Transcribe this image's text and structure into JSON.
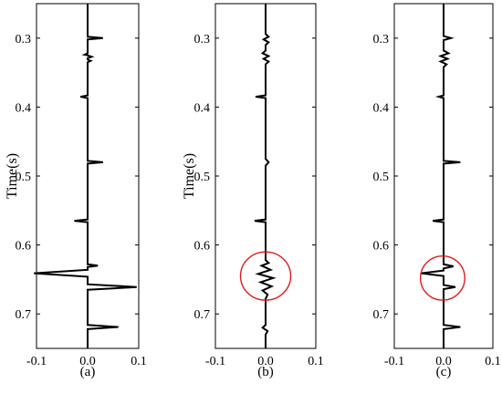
{
  "chart_data": [
    {
      "type": "line",
      "orientation": "vertical-trace",
      "caption": "(a)",
      "ylabel": "Time(s)",
      "xlim": [
        -0.1,
        0.1
      ],
      "ylim": [
        0.75,
        0.25
      ],
      "xticks": [
        "-0.1",
        "0.0",
        "0.1"
      ],
      "yticks": [
        "0.3",
        "0.4",
        "0.5",
        "0.6",
        "0.7"
      ],
      "trace": [
        [
          0.0,
          0.25
        ],
        [
          0.0,
          0.298
        ],
        [
          0.03,
          0.3
        ],
        [
          0.0,
          0.302
        ],
        [
          0.0,
          0.322
        ],
        [
          -0.006,
          0.324
        ],
        [
          0.0,
          0.325
        ],
        [
          0.008,
          0.327
        ],
        [
          0.0,
          0.329
        ],
        [
          0.0,
          0.331
        ],
        [
          0.006,
          0.333
        ],
        [
          0.0,
          0.335
        ],
        [
          0.0,
          0.383
        ],
        [
          -0.014,
          0.385
        ],
        [
          0.0,
          0.387
        ],
        [
          0.0,
          0.478
        ],
        [
          0.03,
          0.48
        ],
        [
          0.0,
          0.482
        ],
        [
          0.0,
          0.563
        ],
        [
          -0.026,
          0.565
        ],
        [
          0.0,
          0.567
        ],
        [
          0.0,
          0.628
        ],
        [
          0.02,
          0.63
        ],
        [
          0.0,
          0.632
        ],
        [
          0.0,
          0.636
        ],
        [
          -0.105,
          0.641
        ],
        [
          0.0,
          0.646
        ],
        [
          0.0,
          0.657
        ],
        [
          0.096,
          0.661
        ],
        [
          0.0,
          0.665
        ],
        [
          0.0,
          0.716
        ],
        [
          0.06,
          0.719
        ],
        [
          0.0,
          0.722
        ],
        [
          0.0,
          0.75
        ]
      ],
      "marker": null
    },
    {
      "type": "line",
      "orientation": "vertical-trace",
      "caption": "(b)",
      "ylabel": "Time(s)",
      "xlim": [
        -0.1,
        0.1
      ],
      "ylim": [
        0.75,
        0.25
      ],
      "xticks": [
        "-0.1",
        "0.0",
        "0.1"
      ],
      "yticks": [
        "0.3",
        "0.4",
        "0.5",
        "0.6",
        "0.7"
      ],
      "trace": [
        [
          0.0,
          0.25
        ],
        [
          0.0,
          0.294
        ],
        [
          0.006,
          0.298
        ],
        [
          -0.004,
          0.302
        ],
        [
          0.006,
          0.306
        ],
        [
          0.0,
          0.31
        ],
        [
          0.0,
          0.318
        ],
        [
          -0.006,
          0.322
        ],
        [
          0.006,
          0.326
        ],
        [
          -0.004,
          0.33
        ],
        [
          0.006,
          0.334
        ],
        [
          0.0,
          0.338
        ],
        [
          0.0,
          0.383
        ],
        [
          -0.02,
          0.385
        ],
        [
          0.0,
          0.387
        ],
        [
          0.0,
          0.475
        ],
        [
          0.006,
          0.48
        ],
        [
          0.0,
          0.485
        ],
        [
          0.0,
          0.563
        ],
        [
          -0.022,
          0.565
        ],
        [
          0.0,
          0.567
        ],
        [
          0.0,
          0.622
        ],
        [
          0.006,
          0.626
        ],
        [
          -0.008,
          0.63
        ],
        [
          0.01,
          0.636
        ],
        [
          -0.015,
          0.642
        ],
        [
          0.015,
          0.648
        ],
        [
          -0.01,
          0.654
        ],
        [
          0.012,
          0.66
        ],
        [
          -0.006,
          0.666
        ],
        [
          0.004,
          0.672
        ],
        [
          0.0,
          0.678
        ],
        [
          0.0,
          0.716
        ],
        [
          -0.006,
          0.72
        ],
        [
          0.004,
          0.725
        ],
        [
          0.0,
          0.73
        ],
        [
          0.0,
          0.75
        ]
      ],
      "marker": {
        "shape": "ellipse",
        "color": "#e0191b",
        "center": [
          0.0,
          0.645
        ],
        "radius": [
          0.05,
          0.035
        ]
      }
    },
    {
      "type": "line",
      "orientation": "vertical-trace",
      "caption": "(c)",
      "ylabel": "",
      "xlim": [
        -0.1,
        0.1
      ],
      "ylim": [
        0.75,
        0.25
      ],
      "xticks": [
        "-0.1",
        "0.0",
        "0.1"
      ],
      "yticks": [
        "0.3",
        "0.4",
        "0.5",
        "0.6",
        "0.7"
      ],
      "trace": [
        [
          0.0,
          0.25
        ],
        [
          0.0,
          0.297
        ],
        [
          0.015,
          0.3
        ],
        [
          0.0,
          0.303
        ],
        [
          0.0,
          0.318
        ],
        [
          0.01,
          0.322
        ],
        [
          -0.006,
          0.326
        ],
        [
          0.008,
          0.33
        ],
        [
          -0.006,
          0.334
        ],
        [
          0.006,
          0.338
        ],
        [
          0.0,
          0.342
        ],
        [
          0.0,
          0.383
        ],
        [
          -0.01,
          0.385
        ],
        [
          0.0,
          0.387
        ],
        [
          0.0,
          0.478
        ],
        [
          0.034,
          0.48
        ],
        [
          0.0,
          0.482
        ],
        [
          0.0,
          0.563
        ],
        [
          -0.022,
          0.565
        ],
        [
          0.0,
          0.567
        ],
        [
          0.0,
          0.628
        ],
        [
          0.02,
          0.631
        ],
        [
          0.0,
          0.634
        ],
        [
          0.0,
          0.637
        ],
        [
          -0.045,
          0.641
        ],
        [
          0.0,
          0.645
        ],
        [
          0.0,
          0.658
        ],
        [
          0.024,
          0.661
        ],
        [
          0.0,
          0.664
        ],
        [
          0.0,
          0.716
        ],
        [
          0.034,
          0.719
        ],
        [
          0.0,
          0.722
        ],
        [
          0.0,
          0.75
        ]
      ],
      "marker": {
        "shape": "ellipse",
        "color": "#e0191b",
        "center": [
          -0.002,
          0.648
        ],
        "radius": [
          0.045,
          0.032
        ]
      }
    }
  ]
}
